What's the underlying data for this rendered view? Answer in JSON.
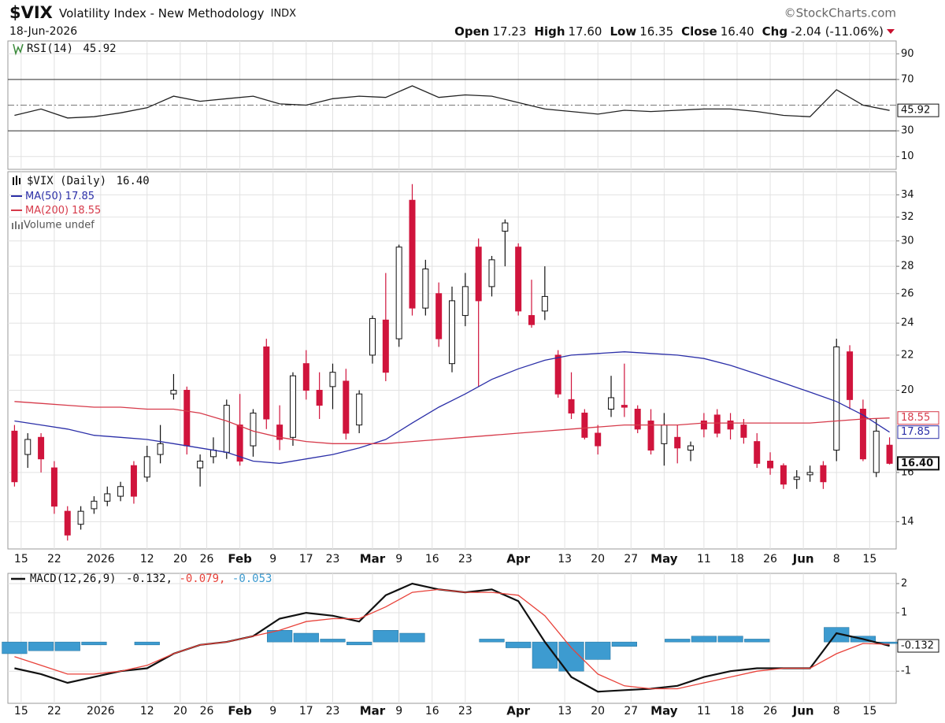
{
  "header": {
    "symbol": "$VIX",
    "name": "Volatility Index - New Methodology",
    "exchange": "INDX",
    "source": "©StockCharts.com",
    "date": "18-Jun-2026",
    "quote": [
      {
        "label": "Open",
        "value": "17.23"
      },
      {
        "label": "High",
        "value": "17.60"
      },
      {
        "label": "Low",
        "value": "16.35"
      },
      {
        "label": "Close",
        "value": "16.40"
      },
      {
        "label": "Chg",
        "value": "-2.04 (-11.06%)"
      }
    ],
    "chg_color": "#c8102e"
  },
  "chart_data": [
    {
      "type": "line",
      "legend": {
        "name": "RSI(14)",
        "value": "45.92"
      },
      "ylim": [
        0,
        100
      ],
      "yticks": [
        90,
        70,
        30,
        10
      ],
      "levels": [
        70,
        30
      ],
      "midline": 50,
      "x": [
        0,
        4,
        8,
        12,
        16,
        20,
        24,
        28,
        32,
        36,
        40,
        44,
        48,
        52,
        56,
        60,
        64,
        68,
        72,
        76,
        80,
        84,
        88,
        92,
        96,
        100,
        104,
        108,
        112,
        116,
        120,
        124,
        128,
        132
      ],
      "series": [
        {
          "name": "RSI(14)",
          "color": "#222222",
          "values": [
            42,
            47,
            40,
            41,
            44,
            48,
            57,
            53,
            55,
            57,
            51,
            50,
            55,
            57,
            56,
            65,
            56,
            58,
            57,
            52,
            47,
            45,
            43,
            46,
            45,
            46,
            47,
            47,
            45,
            42,
            41,
            62,
            50,
            45.92
          ]
        }
      ]
    },
    {
      "type": "candlestick",
      "legend": {
        "name": "$VIX (Daily)",
        "value": "16.40"
      },
      "volume": "Volume undef",
      "log_scale": true,
      "ylim": [
        13,
        36.2
      ],
      "yticks": [
        34,
        32,
        30,
        28,
        26,
        24,
        22,
        20,
        16,
        14
      ],
      "xlim": [
        -1,
        133
      ],
      "xticks": [
        {
          "value": 1,
          "label": "15"
        },
        {
          "value": 6,
          "label": "22"
        },
        {
          "value": 13,
          "label": "2026"
        },
        {
          "value": 20,
          "label": "12"
        },
        {
          "value": 25,
          "label": "20"
        },
        {
          "value": 29,
          "label": "26"
        },
        {
          "value": 34,
          "label": "Feb"
        },
        {
          "value": 39,
          "label": "9"
        },
        {
          "value": 44,
          "label": "17"
        },
        {
          "value": 48,
          "label": "23"
        },
        {
          "value": 54,
          "label": "Mar"
        },
        {
          "value": 58,
          "label": "9"
        },
        {
          "value": 63,
          "label": "16"
        },
        {
          "value": 68,
          "label": "23"
        },
        {
          "value": 76,
          "label": "Apr"
        },
        {
          "value": 83,
          "label": "13"
        },
        {
          "value": 88,
          "label": "20"
        },
        {
          "value": 93,
          "label": "27"
        },
        {
          "value": 98,
          "label": "May"
        },
        {
          "value": 104,
          "label": "11"
        },
        {
          "value": 109,
          "label": "18"
        },
        {
          "value": 114,
          "label": "26"
        },
        {
          "value": 119,
          "label": "Jun"
        },
        {
          "value": 124,
          "label": "8"
        },
        {
          "value": 129,
          "label": "15"
        }
      ],
      "grid": true,
      "up_color": "#111111",
      "down_color": "#d0143c",
      "candles": {
        "x": [
          0,
          2,
          4,
          6,
          8,
          10,
          12,
          14,
          16,
          18,
          20,
          22,
          24,
          26,
          28,
          30,
          32,
          34,
          36,
          38,
          40,
          42,
          44,
          46,
          48,
          50,
          52,
          54,
          56,
          58,
          60,
          62,
          64,
          66,
          68,
          70,
          72,
          74,
          76,
          78,
          80,
          82,
          84,
          86,
          88,
          90,
          92,
          94,
          96,
          98,
          100,
          102,
          104,
          106,
          108,
          110,
          112,
          114,
          116,
          118,
          120,
          122,
          124,
          126,
          128,
          130,
          132
        ],
        "open": [
          17.9,
          16.8,
          17.6,
          16.2,
          14.4,
          13.9,
          14.5,
          14.8,
          15.0,
          16.3,
          15.8,
          16.8,
          19.8,
          20.0,
          16.2,
          16.7,
          16.9,
          18.2,
          17.2,
          22.5,
          18.2,
          17.6,
          21.5,
          20.0,
          20.2,
          20.5,
          18.2,
          22.0,
          24.2,
          23.0,
          33.5,
          25.0,
          26.0,
          21.5,
          24.5,
          29.5,
          26.5,
          30.8,
          29.5,
          24.5,
          24.8,
          22.0,
          19.5,
          18.8,
          17.8,
          19.0,
          19.2,
          19.0,
          18.4,
          17.3,
          17.6,
          17.0,
          18.4,
          18.7,
          18.4,
          18.2,
          17.4,
          16.5,
          16.3,
          15.7,
          15.9,
          16.3,
          17.0,
          22.2,
          19.0,
          16.0,
          17.23
        ],
        "high": [
          18.2,
          17.8,
          17.8,
          16.5,
          14.6,
          14.6,
          15.0,
          15.4,
          15.6,
          16.5,
          17.2,
          18.2,
          20.9,
          20.2,
          16.8,
          17.6,
          19.5,
          19.8,
          19.0,
          23.0,
          19.2,
          21.0,
          22.3,
          21.0,
          21.5,
          21.2,
          20.0,
          24.5,
          27.5,
          29.7,
          35.0,
          28.5,
          26.8,
          26.5,
          27.5,
          30.2,
          28.8,
          31.8,
          29.8,
          27.0,
          28.0,
          22.3,
          21.0,
          19.0,
          18.2,
          20.8,
          21.5,
          19.2,
          19.0,
          18.8,
          18.2,
          17.4,
          18.8,
          19.0,
          18.8,
          18.5,
          17.8,
          16.9,
          16.4,
          16.1,
          16.3,
          16.5,
          23.0,
          22.6,
          19.5,
          18.5,
          17.6
        ],
        "low": [
          15.4,
          16.2,
          16.0,
          14.3,
          13.3,
          13.7,
          14.3,
          14.6,
          14.8,
          14.7,
          15.6,
          16.4,
          19.5,
          16.8,
          15.4,
          16.4,
          16.6,
          16.3,
          16.7,
          18.0,
          17.0,
          17.2,
          19.5,
          18.5,
          19.0,
          17.5,
          17.8,
          21.5,
          20.5,
          22.5,
          24.5,
          24.5,
          22.5,
          21.0,
          23.8,
          20.2,
          25.8,
          28.0,
          24.5,
          23.7,
          24.2,
          19.6,
          18.5,
          17.5,
          16.8,
          18.6,
          18.6,
          17.8,
          16.8,
          16.3,
          16.4,
          16.5,
          17.6,
          17.6,
          17.5,
          17.3,
          16.2,
          15.9,
          15.3,
          15.3,
          15.6,
          15.3,
          16.5,
          19.0,
          16.5,
          15.8,
          16.35
        ],
        "close": [
          15.6,
          17.5,
          16.6,
          14.6,
          13.5,
          14.4,
          14.8,
          15.1,
          15.4,
          15.0,
          16.7,
          17.3,
          20.0,
          17.2,
          16.5,
          17.0,
          19.2,
          16.5,
          18.8,
          18.5,
          17.5,
          20.8,
          20.0,
          19.2,
          21.0,
          17.8,
          19.8,
          24.3,
          21.0,
          29.5,
          25.0,
          27.8,
          23.0,
          25.5,
          26.5,
          25.5,
          28.5,
          31.5,
          24.8,
          23.9,
          25.8,
          19.8,
          18.8,
          17.6,
          17.2,
          19.6,
          19.1,
          18.0,
          17.0,
          18.2,
          17.1,
          17.2,
          18.0,
          17.8,
          18.0,
          17.6,
          16.4,
          16.2,
          15.5,
          15.8,
          16.0,
          15.6,
          22.5,
          19.5,
          16.6,
          17.9,
          16.4
        ]
      },
      "x": [
        0,
        4,
        8,
        12,
        16,
        20,
        24,
        28,
        32,
        36,
        40,
        44,
        48,
        52,
        56,
        60,
        64,
        68,
        72,
        76,
        80,
        84,
        88,
        92,
        96,
        100,
        104,
        108,
        112,
        116,
        120,
        124,
        128,
        132
      ],
      "series": [
        {
          "name": "MA(50)",
          "last": "17.85",
          "color": "#2b2fa8",
          "values": [
            18.4,
            18.2,
            18.0,
            17.7,
            17.6,
            17.5,
            17.3,
            17.1,
            16.9,
            16.5,
            16.4,
            16.6,
            16.8,
            17.1,
            17.5,
            18.3,
            19.1,
            19.8,
            20.6,
            21.2,
            21.7,
            22.0,
            22.1,
            22.2,
            22.1,
            22.0,
            21.8,
            21.4,
            20.9,
            20.4,
            19.9,
            19.4,
            18.7,
            17.85
          ]
        },
        {
          "name": "MA(200)",
          "last": "18.55",
          "color": "#d63a4a",
          "values": [
            19.4,
            19.3,
            19.2,
            19.1,
            19.1,
            19.0,
            19.0,
            18.8,
            18.4,
            17.9,
            17.6,
            17.4,
            17.3,
            17.3,
            17.3,
            17.4,
            17.5,
            17.6,
            17.7,
            17.8,
            17.9,
            18.0,
            18.1,
            18.2,
            18.2,
            18.2,
            18.3,
            18.3,
            18.3,
            18.3,
            18.3,
            18.4,
            18.5,
            18.55
          ]
        }
      ]
    },
    {
      "type": "macd",
      "legend": {
        "name": "MACD(12,26,9)",
        "separator": ", "
      },
      "ylim": [
        -2.1,
        2.35
      ],
      "yticks": [
        2,
        1,
        -1
      ],
      "x": [
        0,
        4,
        8,
        12,
        16,
        20,
        24,
        28,
        32,
        36,
        40,
        44,
        48,
        52,
        56,
        60,
        64,
        68,
        72,
        76,
        80,
        84,
        88,
        92,
        96,
        100,
        104,
        108,
        112,
        116,
        120,
        124,
        128,
        132
      ],
      "series": [
        {
          "label": "-0.132",
          "color": "#111111",
          "style": "line",
          "values": [
            -0.9,
            -1.1,
            -1.4,
            -1.2,
            -1.0,
            -0.9,
            -0.4,
            -0.1,
            0.0,
            0.2,
            0.8,
            1.0,
            0.9,
            0.7,
            1.6,
            2.0,
            1.8,
            1.7,
            1.8,
            1.4,
            0.0,
            -1.2,
            -1.7,
            -1.65,
            -1.6,
            -1.5,
            -1.2,
            -1.0,
            -0.9,
            -0.9,
            -0.9,
            0.3,
            0.1,
            -0.132
          ]
        },
        {
          "label": "-0.079",
          "color": "#e8423a",
          "style": "line",
          "values": [
            -0.5,
            -0.8,
            -1.1,
            -1.1,
            -1.0,
            -0.8,
            -0.4,
            -0.1,
            0.0,
            0.2,
            0.4,
            0.7,
            0.8,
            0.8,
            1.2,
            1.7,
            1.8,
            1.7,
            1.7,
            1.6,
            0.9,
            -0.2,
            -1.1,
            -1.5,
            -1.6,
            -1.6,
            -1.4,
            -1.2,
            -1.0,
            -0.9,
            -0.9,
            -0.4,
            -0.05,
            -0.079
          ]
        },
        {
          "label": "-0.053",
          "color": "#3d9bd0",
          "style": "bar",
          "values": [
            -0.4,
            -0.3,
            -0.3,
            -0.1,
            0.0,
            -0.1,
            0.0,
            0.0,
            0.0,
            0.0,
            0.4,
            0.3,
            0.1,
            -0.1,
            0.4,
            0.3,
            0.0,
            0.0,
            0.1,
            -0.2,
            -0.9,
            -1.0,
            -0.6,
            -0.15,
            0.0,
            0.1,
            0.2,
            0.2,
            0.1,
            0.0,
            0.0,
            0.5,
            0.2,
            -0.053
          ]
        }
      ]
    }
  ]
}
